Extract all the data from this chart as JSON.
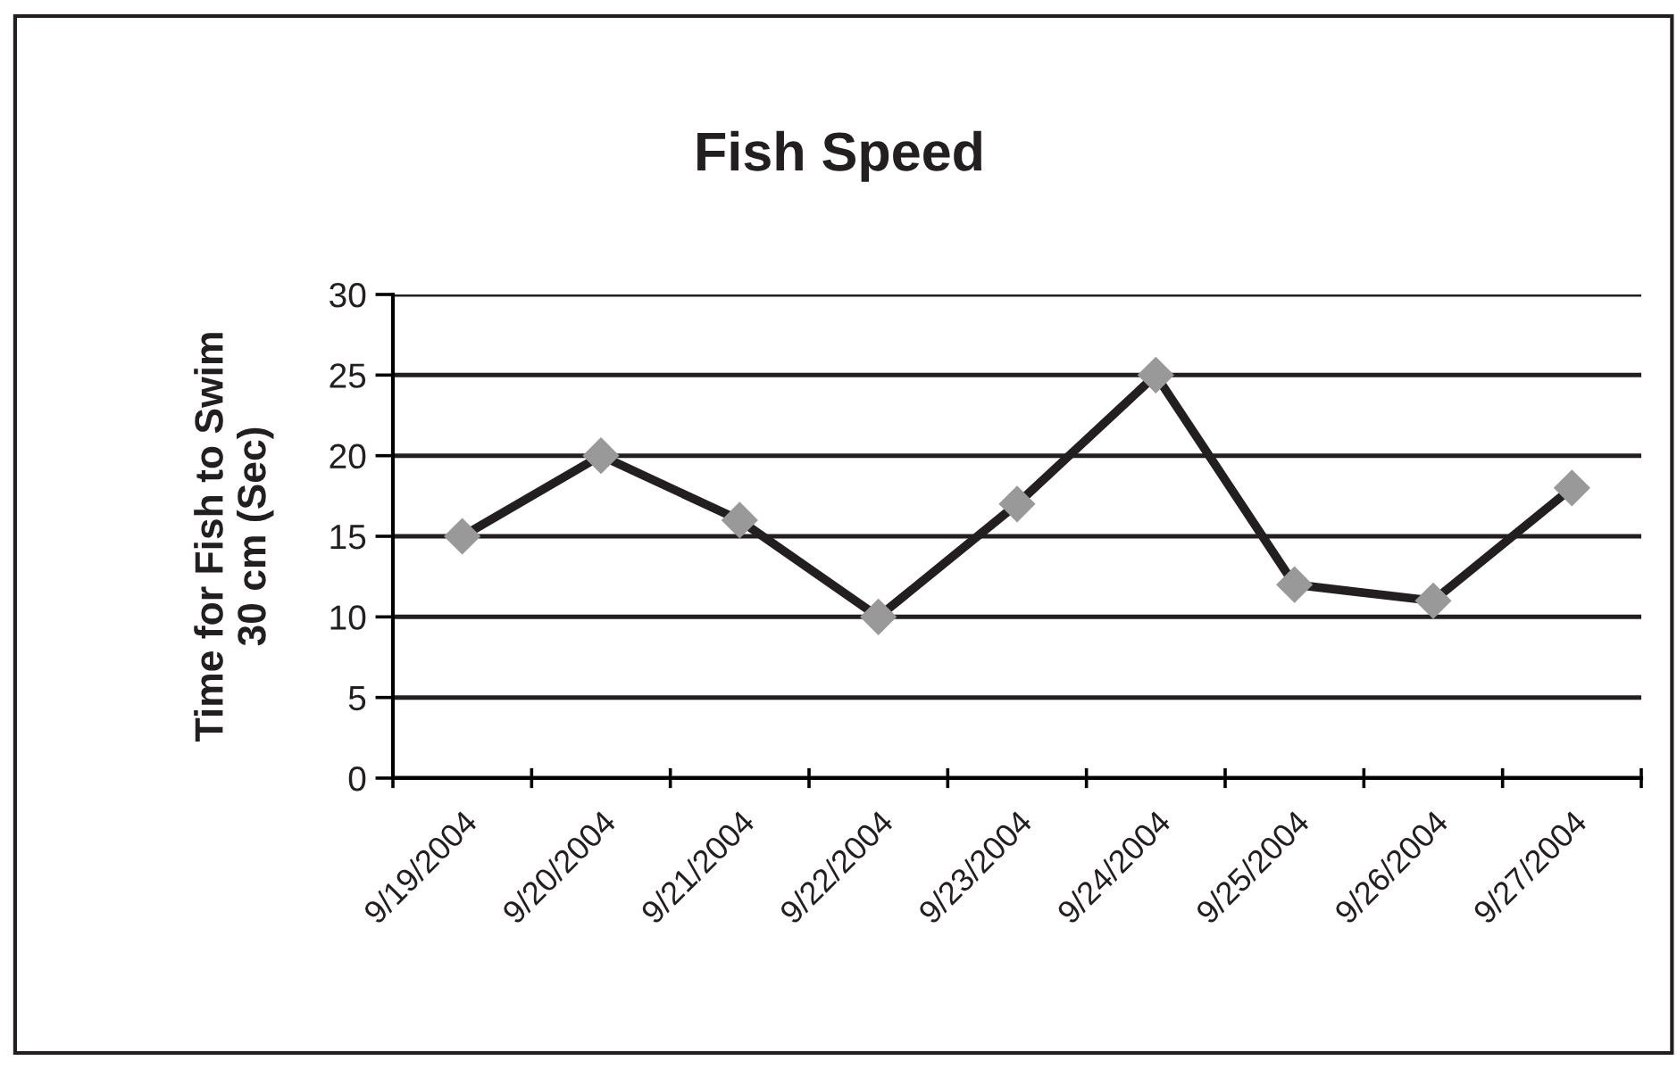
{
  "chart_data": {
    "type": "line",
    "title": "Fish Speed",
    "ylabel": "Time for Fish to Swim\n30 cm (Sec)",
    "categories": [
      "9/19/2004",
      "9/20/2004",
      "9/21/2004",
      "9/22/2004",
      "9/23/2004",
      "9/24/2004",
      "9/25/2004",
      "9/26/2004",
      "9/27/2004"
    ],
    "series": [
      {
        "color": "#231f20",
        "colors": [
          "#999999",
          "#999999",
          "#999999",
          "#999999",
          "#999999",
          "#999999",
          "#999999",
          "#999999",
          "#999999"
        ],
        "values": [
          15,
          20,
          16,
          10,
          17,
          25,
          12,
          11,
          18
        ]
      }
    ],
    "ylim": [
      0,
      30
    ],
    "yticks": [
      0,
      5,
      10,
      15,
      20,
      25,
      30
    ],
    "grid": "y",
    "marker": "diamond",
    "line_style": "solid",
    "legend": false
  }
}
